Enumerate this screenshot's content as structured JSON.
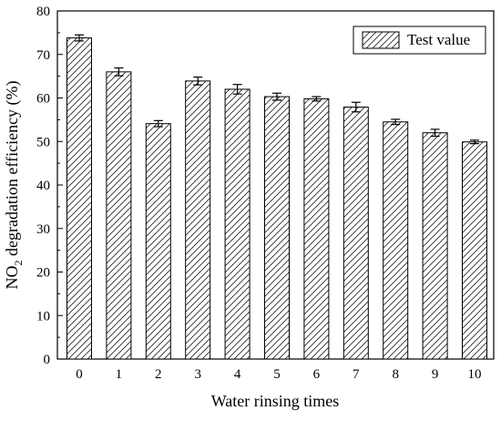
{
  "chart_data": {
    "type": "bar",
    "xlabel": "Water rinsing times",
    "ylabel_prefix": "NO",
    "ylabel_subscript": "2",
    "ylabel_suffix": " degradation efficiency (%)",
    "categories": [
      "0",
      "1",
      "2",
      "3",
      "4",
      "5",
      "6",
      "7",
      "8",
      "9",
      "10"
    ],
    "series": [
      {
        "name": "Test value",
        "values": [
          73.8,
          66.0,
          54.1,
          63.9,
          62.0,
          60.3,
          59.8,
          57.9,
          54.5,
          52.0,
          49.9
        ],
        "errors": [
          0.7,
          0.9,
          0.7,
          0.9,
          1.1,
          0.8,
          0.5,
          1.1,
          0.6,
          0.8,
          0.4
        ]
      }
    ],
    "ylim": [
      0,
      80
    ],
    "yticks": [
      0,
      10,
      20,
      30,
      40,
      50,
      60,
      70,
      80
    ],
    "legend_position": "top-right",
    "bar_fill": "hatched",
    "grid": false
  }
}
